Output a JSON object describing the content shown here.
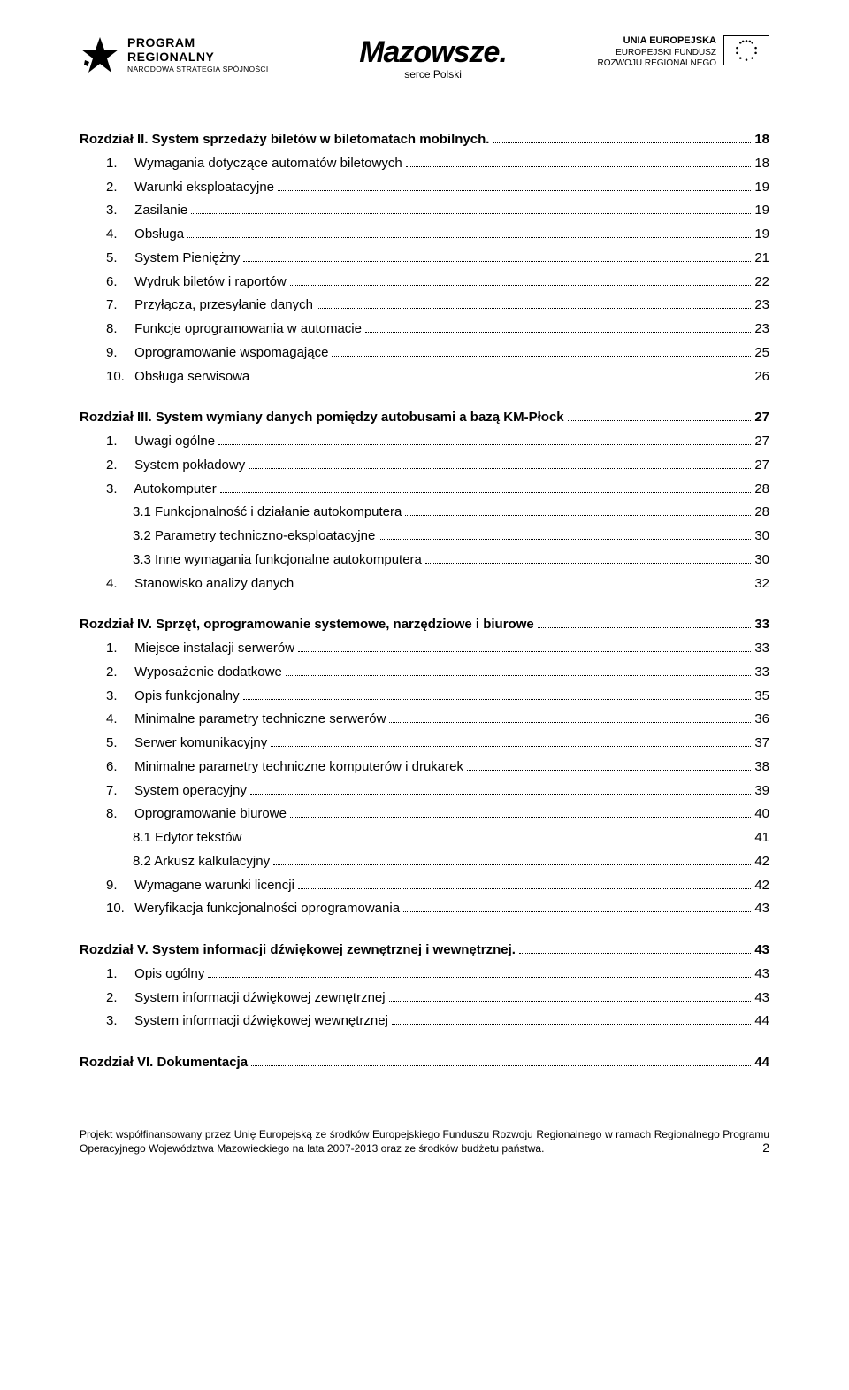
{
  "header": {
    "left": {
      "line1": "PROGRAM",
      "line2": "REGIONALNY",
      "line3": "NARODOWA STRATEGIA SPÓJNOŚCI"
    },
    "center": {
      "main": "Mazowsze.",
      "sub": "serce Polski"
    },
    "right": {
      "line1": "UNIA EUROPEJSKA",
      "line2": "EUROPEJSKI FUNDUSZ",
      "line3": "ROZWOJU REGIONALNEGO"
    }
  },
  "toc": [
    {
      "heading": {
        "text": "Rozdział II. System sprzedaży biletów w biletomatach mobilnych.",
        "page": "18"
      },
      "items": [
        {
          "num": "1.",
          "text": "Wymagania dotyczące automatów biletowych",
          "page": "18",
          "level": 1
        },
        {
          "num": "2.",
          "text": "Warunki eksploatacyjne",
          "page": "19",
          "level": 1
        },
        {
          "num": "3.",
          "text": "Zasilanie",
          "page": "19",
          "level": 1
        },
        {
          "num": "4.",
          "text": "Obsługa",
          "page": "19",
          "level": 1
        },
        {
          "num": "5.",
          "text": "System Pieniężny",
          "page": "21",
          "level": 1
        },
        {
          "num": "6.",
          "text": "Wydruk biletów i raportów",
          "page": "22",
          "level": 1
        },
        {
          "num": "7.",
          "text": "Przyłącza, przesyłanie danych",
          "page": "23",
          "level": 1
        },
        {
          "num": "8.",
          "text": "Funkcje oprogramowania w automacie",
          "page": "23",
          "level": 1
        },
        {
          "num": "9.",
          "text": "Oprogramowanie wspomagające",
          "page": "25",
          "level": 1
        },
        {
          "num": "10.",
          "text": "Obsługa serwisowa",
          "page": "26",
          "level": 1
        }
      ]
    },
    {
      "heading": {
        "text": "Rozdział III. System wymiany danych pomiędzy autobusami a bazą KM-Płock",
        "page": "27"
      },
      "items": [
        {
          "num": "1.",
          "text": "Uwagi ogólne",
          "page": "27",
          "level": 1
        },
        {
          "num": "2.",
          "text": "System pokładowy",
          "page": "27",
          "level": 1
        },
        {
          "num": "3.",
          "text": "Autokomputer",
          "page": "28",
          "level": 1
        },
        {
          "num": "3.1",
          "text": "Funkcjonalność i działanie autokomputera",
          "page": "28",
          "level": 2
        },
        {
          "num": "3.2",
          "text": "Parametry techniczno-eksploatacyjne",
          "page": "30",
          "level": 2
        },
        {
          "num": "3.3",
          "text": "Inne wymagania funkcjonalne autokomputera",
          "page": "30",
          "level": 2
        },
        {
          "num": "4.",
          "text": "Stanowisko analizy danych",
          "page": "32",
          "level": 1
        }
      ]
    },
    {
      "heading": {
        "text": "Rozdział IV. Sprzęt, oprogramowanie systemowe, narzędziowe i biurowe",
        "page": "33"
      },
      "items": [
        {
          "num": "1.",
          "text": "Miejsce instalacji serwerów",
          "page": "33",
          "level": 1
        },
        {
          "num": "2.",
          "text": "Wyposażenie dodatkowe",
          "page": "33",
          "level": 1
        },
        {
          "num": "3.",
          "text": "Opis funkcjonalny",
          "page": "35",
          "level": 1
        },
        {
          "num": "4.",
          "text": "Minimalne parametry techniczne serwerów",
          "page": "36",
          "level": 1
        },
        {
          "num": "5.",
          "text": "Serwer komunikacyjny",
          "page": "37",
          "level": 1
        },
        {
          "num": "6.",
          "text": "Minimalne parametry techniczne komputerów i drukarek",
          "page": "38",
          "level": 1
        },
        {
          "num": "7.",
          "text": "System operacyjny",
          "page": "39",
          "level": 1
        },
        {
          "num": "8.",
          "text": "Oprogramowanie biurowe",
          "page": "40",
          "level": 1
        },
        {
          "num": "8.1",
          "text": "Edytor tekstów",
          "page": "41",
          "level": 2
        },
        {
          "num": "8.2",
          "text": "Arkusz kalkulacyjny",
          "page": "42",
          "level": 2
        },
        {
          "num": "9.",
          "text": "Wymagane warunki licencji",
          "page": "42",
          "level": 1
        },
        {
          "num": "10.",
          "text": "Weryfikacja funkcjonalności oprogramowania",
          "page": "43",
          "level": 1
        }
      ]
    },
    {
      "heading": {
        "text": "Rozdział V. System informacji dźwiękowej zewnętrznej i wewnętrznej.",
        "page": "43"
      },
      "items": [
        {
          "num": "1.",
          "text": "Opis ogólny",
          "page": "43",
          "level": 1
        },
        {
          "num": "2.",
          "text": "System informacji dźwiękowej zewnętrznej",
          "page": "43",
          "level": 1
        },
        {
          "num": "3.",
          "text": "System informacji dźwiękowej wewnętrznej",
          "page": "44",
          "level": 1
        }
      ]
    },
    {
      "heading": {
        "text": "Rozdział VI. Dokumentacja",
        "page": "44"
      },
      "items": []
    }
  ],
  "footer": {
    "text": "Projekt współfinansowany przez Unię Europejską ze środków Europejskiego Funduszu Rozwoju Regionalnego w ramach Regionalnego Programu Operacyjnego Województwa Mazowieckiego na lata 2007-2013 oraz ze środków budżetu państwa.",
    "page_number": "2"
  }
}
